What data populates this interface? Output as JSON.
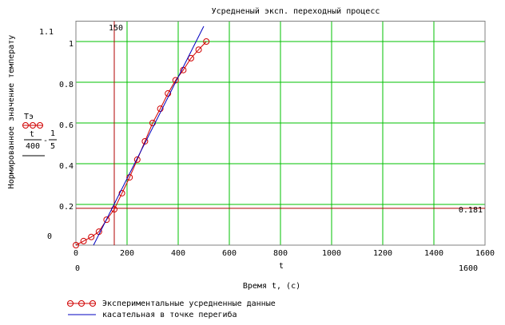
{
  "chart_data": {
    "type": "line",
    "title": "Усредненый эксп. переходный процесс",
    "y_label": "Нормированное значение температу",
    "x_label": "Время t, (c)",
    "x_var": "t",
    "y_expr": {
      "name": "Тэ",
      "num": "t",
      "den": "400",
      "op": "-",
      "fnum": "1",
      "fden": "5"
    },
    "xlim": [
      0,
      1600
    ],
    "ylim": [
      0,
      1.1
    ],
    "xticks": [
      0,
      200,
      400,
      600,
      800,
      1000,
      1200,
      1400,
      1600
    ],
    "yticks": [
      0.2,
      0.4,
      0.6,
      0.8,
      1
    ],
    "grid": true,
    "grid_color": "#00c000",
    "vmarker": 150,
    "hmarker": 0.181,
    "marker_color": "#b00000",
    "series": [
      {
        "name": "Экспериментальные усредненные данные",
        "color": "#d00000",
        "markers": true,
        "x": [
          0,
          30,
          60,
          90,
          120,
          150,
          180,
          210,
          240,
          270,
          300,
          330,
          360,
          390,
          420,
          450,
          480,
          510
        ],
        "values": [
          0,
          0.02,
          0.04,
          0.066,
          0.125,
          0.176,
          0.255,
          0.333,
          0.42,
          0.51,
          0.6,
          0.67,
          0.745,
          0.81,
          0.86,
          0.918,
          0.96,
          1.0
        ]
      },
      {
        "name": "касательная в точке перегиба",
        "color": "#0000c0",
        "markers": false,
        "x": [
          69,
          500
        ],
        "values": [
          0,
          1.075
        ]
      }
    ]
  }
}
